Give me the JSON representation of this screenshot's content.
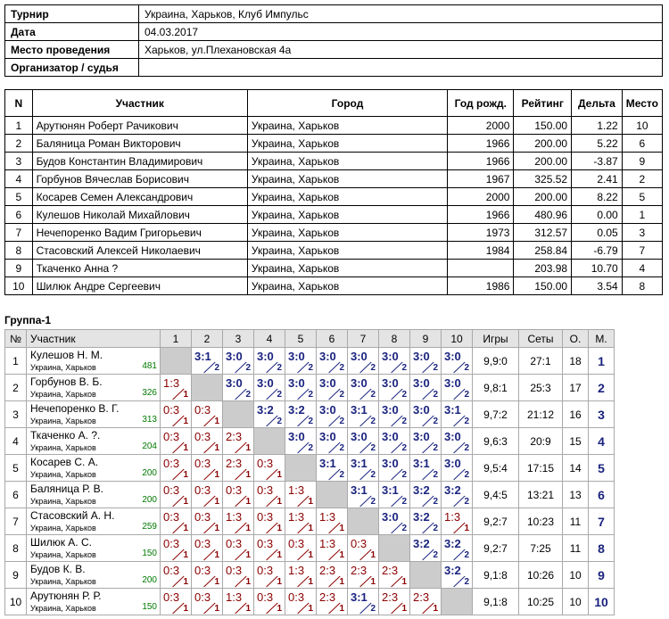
{
  "info": [
    {
      "label": "Турнир",
      "value": "Украина, Харьков, Клуб Импульс"
    },
    {
      "label": "Дата",
      "value": "04.03.2017"
    },
    {
      "label": "Место проведения",
      "value": "Харьков, ул.Плехановская 4а"
    },
    {
      "label": "Организатор / судья",
      "value": ""
    }
  ],
  "players_table": {
    "headers": [
      "N",
      "Участник",
      "Город",
      "Год рожд.",
      "Рейтинг",
      "Дельта",
      "Место"
    ],
    "rows": [
      {
        "n": "1",
        "name": "Арутюнян Роберт Рачикович",
        "city": "Украина, Харьков",
        "year": "2000",
        "rating": "150.00",
        "delta": "1.22",
        "place": "10"
      },
      {
        "n": "2",
        "name": "Баляница Роман Викторович",
        "city": "Украина, Харьков",
        "year": "1966",
        "rating": "200.00",
        "delta": "5.22",
        "place": "6"
      },
      {
        "n": "3",
        "name": "Будов Константин Владимирович",
        "city": "Украина, Харьков",
        "year": "1966",
        "rating": "200.00",
        "delta": "-3.87",
        "place": "9"
      },
      {
        "n": "4",
        "name": "Горбунов Вячеслав Борисович",
        "city": "Украина, Харьков",
        "year": "1967",
        "rating": "325.52",
        "delta": "2.41",
        "place": "2"
      },
      {
        "n": "5",
        "name": "Косарев Семен Александрович",
        "city": "Украина, Харьков",
        "year": "2000",
        "rating": "200.00",
        "delta": "8.22",
        "place": "5"
      },
      {
        "n": "6",
        "name": "Кулешов Николай Михайлович",
        "city": "Украина, Харьков",
        "year": "1966",
        "rating": "480.96",
        "delta": "0.00",
        "place": "1"
      },
      {
        "n": "7",
        "name": "Нечепоренко Вадим Григорьевич",
        "city": "Украина, Харьков",
        "year": "1973",
        "rating": "312.57",
        "delta": "0.05",
        "place": "3"
      },
      {
        "n": "8",
        "name": "Стасовский Алексей Николаевич",
        "city": "Украина, Харьков",
        "year": "1984",
        "rating": "258.84",
        "delta": "-6.79",
        "place": "7"
      },
      {
        "n": "9",
        "name": "Ткаченко Анна ?",
        "city": "Украина, Харьков",
        "year": "",
        "rating": "203.98",
        "delta": "10.70",
        "place": "4"
      },
      {
        "n": "10",
        "name": "Шилюк Андре Сергеевич",
        "city": "Украина, Харьков",
        "year": "1986",
        "rating": "150.00",
        "delta": "3.54",
        "place": "8"
      }
    ]
  },
  "group": {
    "title": "Группа-1",
    "headers": {
      "num": "№",
      "player": "Участник",
      "cols": [
        "1",
        "2",
        "3",
        "4",
        "5",
        "6",
        "7",
        "8",
        "9",
        "10"
      ],
      "games": "Игры",
      "sets": "Сеты",
      "points": "О.",
      "place": "М."
    },
    "rows": [
      {
        "n": "1",
        "name": "Кулешов Н. М.",
        "city": "Украина, Харьков",
        "rating": "481",
        "results": [
          null,
          {
            "s": "3:1",
            "p": "2"
          },
          {
            "s": "3:0",
            "p": "2"
          },
          {
            "s": "3:0",
            "p": "2"
          },
          {
            "s": "3:0",
            "p": "2"
          },
          {
            "s": "3:0",
            "p": "2"
          },
          {
            "s": "3:0",
            "p": "2"
          },
          {
            "s": "3:0",
            "p": "2"
          },
          {
            "s": "3:0",
            "p": "2"
          },
          {
            "s": "3:0",
            "p": "2"
          }
        ],
        "games": "9,9:0",
        "sets": "27:1",
        "points": "18",
        "place": "1"
      },
      {
        "n": "2",
        "name": "Горбунов В. Б.",
        "city": "Украина, Харьков",
        "rating": "326",
        "results": [
          {
            "s": "1:3",
            "p": "1"
          },
          null,
          {
            "s": "3:0",
            "p": "2"
          },
          {
            "s": "3:0",
            "p": "2"
          },
          {
            "s": "3:0",
            "p": "2"
          },
          {
            "s": "3:0",
            "p": "2"
          },
          {
            "s": "3:0",
            "p": "2"
          },
          {
            "s": "3:0",
            "p": "2"
          },
          {
            "s": "3:0",
            "p": "2"
          },
          {
            "s": "3:0",
            "p": "2"
          }
        ],
        "games": "9,8:1",
        "sets": "25:3",
        "points": "17",
        "place": "2"
      },
      {
        "n": "3",
        "name": "Нечепоренко В. Г.",
        "city": "Украина, Харьков",
        "rating": "313",
        "results": [
          {
            "s": "0:3",
            "p": "1"
          },
          {
            "s": "0:3",
            "p": "1"
          },
          null,
          {
            "s": "3:2",
            "p": "2"
          },
          {
            "s": "3:2",
            "p": "2"
          },
          {
            "s": "3:0",
            "p": "2"
          },
          {
            "s": "3:1",
            "p": "2"
          },
          {
            "s": "3:0",
            "p": "2"
          },
          {
            "s": "3:0",
            "p": "2"
          },
          {
            "s": "3:1",
            "p": "2"
          }
        ],
        "games": "9,7:2",
        "sets": "21:12",
        "points": "16",
        "place": "3"
      },
      {
        "n": "4",
        "name": "Ткаченко А. ?.",
        "city": "Украина, Харьков",
        "rating": "204",
        "results": [
          {
            "s": "0:3",
            "p": "1"
          },
          {
            "s": "0:3",
            "p": "1"
          },
          {
            "s": "2:3",
            "p": "1"
          },
          null,
          {
            "s": "3:0",
            "p": "2"
          },
          {
            "s": "3:0",
            "p": "2"
          },
          {
            "s": "3:0",
            "p": "2"
          },
          {
            "s": "3:0",
            "p": "2"
          },
          {
            "s": "3:0",
            "p": "2"
          },
          {
            "s": "3:0",
            "p": "2"
          }
        ],
        "games": "9,6:3",
        "sets": "20:9",
        "points": "15",
        "place": "4"
      },
      {
        "n": "5",
        "name": "Косарев С. А.",
        "city": "Украина, Харьков",
        "rating": "200",
        "results": [
          {
            "s": "0:3",
            "p": "1"
          },
          {
            "s": "0:3",
            "p": "1"
          },
          {
            "s": "2:3",
            "p": "1"
          },
          {
            "s": "0:3",
            "p": "1"
          },
          null,
          {
            "s": "3:1",
            "p": "2"
          },
          {
            "s": "3:1",
            "p": "2"
          },
          {
            "s": "3:0",
            "p": "2"
          },
          {
            "s": "3:1",
            "p": "2"
          },
          {
            "s": "3:0",
            "p": "2"
          }
        ],
        "games": "9,5:4",
        "sets": "17:15",
        "points": "14",
        "place": "5"
      },
      {
        "n": "6",
        "name": "Баляница Р. В.",
        "city": "Украина, Харьков",
        "rating": "200",
        "results": [
          {
            "s": "0:3",
            "p": "1"
          },
          {
            "s": "0:3",
            "p": "1"
          },
          {
            "s": "0:3",
            "p": "1"
          },
          {
            "s": "0:3",
            "p": "1"
          },
          {
            "s": "1:3",
            "p": "1"
          },
          null,
          {
            "s": "3:1",
            "p": "2"
          },
          {
            "s": "3:1",
            "p": "2"
          },
          {
            "s": "3:2",
            "p": "2"
          },
          {
            "s": "3:2",
            "p": "2"
          }
        ],
        "games": "9,4:5",
        "sets": "13:21",
        "points": "13",
        "place": "6"
      },
      {
        "n": "7",
        "name": "Стасовский А. Н.",
        "city": "Украина, Харьков",
        "rating": "259",
        "results": [
          {
            "s": "0:3",
            "p": "1"
          },
          {
            "s": "0:3",
            "p": "1"
          },
          {
            "s": "1:3",
            "p": "1"
          },
          {
            "s": "0:3",
            "p": "1"
          },
          {
            "s": "1:3",
            "p": "1"
          },
          {
            "s": "1:3",
            "p": "1"
          },
          null,
          {
            "s": "3:0",
            "p": "2"
          },
          {
            "s": "3:2",
            "p": "2"
          },
          {
            "s": "1:3",
            "p": "1"
          }
        ],
        "games": "9,2:7",
        "sets": "10:23",
        "points": "11",
        "place": "7"
      },
      {
        "n": "8",
        "name": "Шилюк А. С.",
        "city": "Украина, Харьков",
        "rating": "150",
        "results": [
          {
            "s": "0:3",
            "p": "1"
          },
          {
            "s": "0:3",
            "p": "1"
          },
          {
            "s": "0:3",
            "p": "1"
          },
          {
            "s": "0:3",
            "p": "1"
          },
          {
            "s": "0:3",
            "p": "1"
          },
          {
            "s": "1:3",
            "p": "1"
          },
          {
            "s": "0:3",
            "p": "1"
          },
          null,
          {
            "s": "3:2",
            "p": "2"
          },
          {
            "s": "3:2",
            "p": "2"
          }
        ],
        "games": "9,2:7",
        "sets": "7:25",
        "points": "11",
        "place": "8"
      },
      {
        "n": "9",
        "name": "Будов К. В.",
        "city": "Украина, Харьков",
        "rating": "200",
        "results": [
          {
            "s": "0:3",
            "p": "1"
          },
          {
            "s": "0:3",
            "p": "1"
          },
          {
            "s": "0:3",
            "p": "1"
          },
          {
            "s": "0:3",
            "p": "1"
          },
          {
            "s": "1:3",
            "p": "1"
          },
          {
            "s": "2:3",
            "p": "1"
          },
          {
            "s": "2:3",
            "p": "1"
          },
          {
            "s": "2:3",
            "p": "1"
          },
          null,
          {
            "s": "3:2",
            "p": "2"
          }
        ],
        "games": "9,1:8",
        "sets": "10:26",
        "points": "10",
        "place": "9"
      },
      {
        "n": "10",
        "name": "Арутюнян Р. Р.",
        "city": "Украина, Харьков",
        "rating": "150",
        "results": [
          {
            "s": "0:3",
            "p": "1"
          },
          {
            "s": "0:3",
            "p": "1"
          },
          {
            "s": "1:3",
            "p": "1"
          },
          {
            "s": "0:3",
            "p": "1"
          },
          {
            "s": "0:3",
            "p": "1"
          },
          {
            "s": "2:3",
            "p": "1"
          },
          {
            "s": "3:1",
            "p": "2"
          },
          {
            "s": "2:3",
            "p": "1"
          },
          {
            "s": "2:3",
            "p": "1"
          },
          null
        ],
        "games": "9,1:8",
        "sets": "10:25",
        "points": "10",
        "place": "10"
      }
    ]
  },
  "colors": {
    "win": "#1a237e",
    "loss": "#8b0000",
    "rating": "#007a00",
    "diagonal": "#cccccc",
    "header_bg": "#e4e4e4"
  }
}
